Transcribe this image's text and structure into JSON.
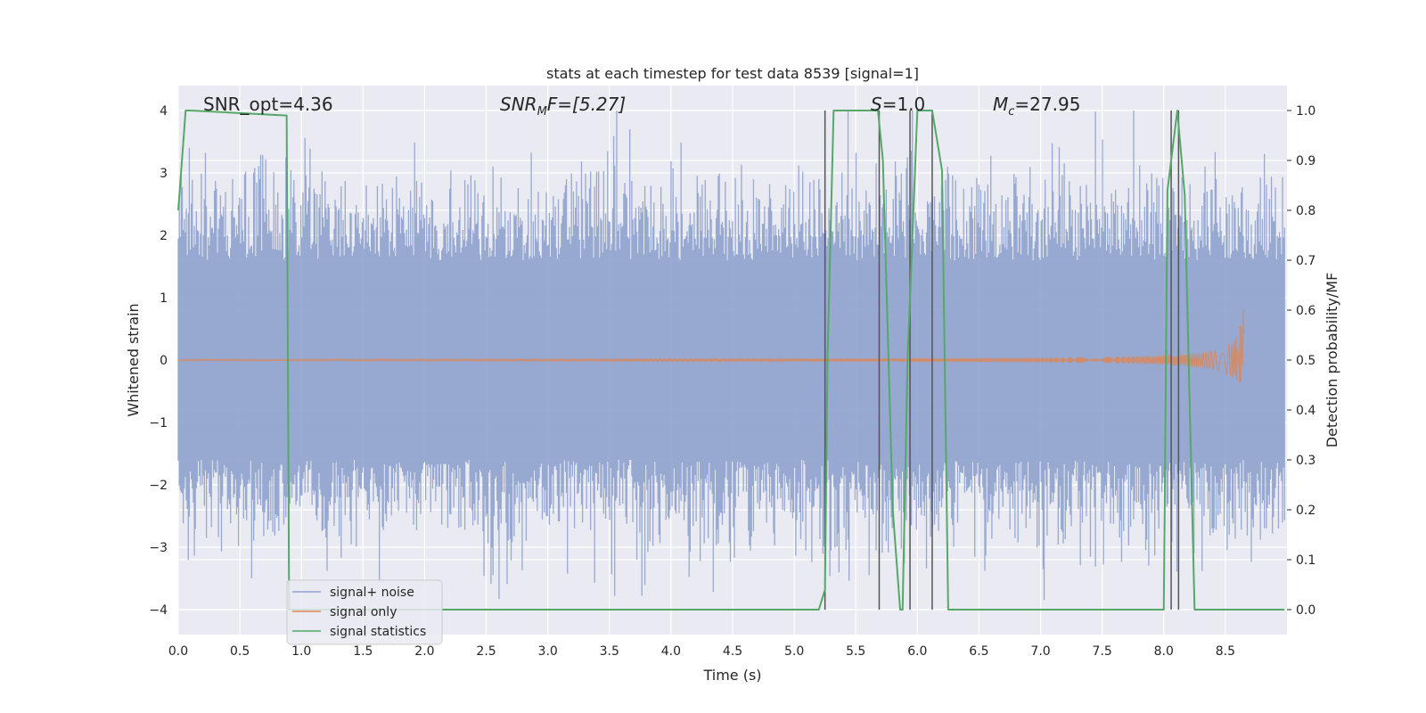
{
  "chart_data": {
    "type": "line",
    "title": "stats at each timestep for test data 8539 [signal=1]",
    "xlabel": "Time (s)",
    "ylabel": "Whitened strain",
    "ylabel_right": "Detection probability/MF",
    "xlim": [
      0.0,
      9.0
    ],
    "ylim": [
      -4.4,
      4.4
    ],
    "ylim_right": [
      -0.05,
      1.05
    ],
    "xticks": [
      0.0,
      0.5,
      1.0,
      1.5,
      2.0,
      2.5,
      3.0,
      3.5,
      4.0,
      4.5,
      5.0,
      5.5,
      6.0,
      6.5,
      7.0,
      7.5,
      8.0,
      8.5
    ],
    "xtick_labels": [
      "0.0",
      "0.5",
      "1.0",
      "1.5",
      "2.0",
      "2.5",
      "3.0",
      "3.5",
      "4.0",
      "4.5",
      "5.0",
      "5.5",
      "6.0",
      "6.5",
      "7.0",
      "7.5",
      "8.0",
      "8.5"
    ],
    "yticks": [
      4,
      3,
      2,
      1,
      0,
      -1,
      -2,
      -3,
      -4
    ],
    "ytick_labels": [
      "4",
      "3",
      "2",
      "1",
      "0",
      "−1",
      "−2",
      "−3",
      "−4"
    ],
    "yticks_right": [
      1.0,
      0.9,
      0.8,
      0.7,
      0.6,
      0.5,
      0.4,
      0.3,
      0.2,
      0.1,
      0.0
    ],
    "ytick_labels_right": [
      "1.0",
      "0.9",
      "0.8",
      "0.7",
      "0.6",
      "0.5",
      "0.4",
      "0.3",
      "0.2",
      "0.1",
      "0.0"
    ],
    "grid": true,
    "legend_placement": "lower-left",
    "annotations": {
      "snr_opt": "SNR_opt=4.36",
      "snr_mf_main": "SNR",
      "snr_mf_sub": "M",
      "snr_mf_rest": "F=[5.27]",
      "s_main": "S",
      "s_rest": "=1.0",
      "mc_main": "M",
      "mc_sub": "c",
      "mc_rest": "=27.95"
    },
    "series": [
      {
        "name": "signal+ noise",
        "color": "#8ea2cc",
        "x_range": [
          0.0,
          8.98
        ],
        "envelope": {
          "typical_abs": 1.6,
          "max": 4.0,
          "min": -3.85
        }
      },
      {
        "name": "signal only",
        "color": "#dd8452",
        "x_range": [
          0.0,
          8.65
        ],
        "peak_amplitude": 1.1,
        "merger_time": 8.65
      },
      {
        "name": "signal statistics",
        "color": "#55a868",
        "axis": "right",
        "x": [
          0.0,
          0.06,
          0.1,
          0.88,
          0.9,
          0.94,
          5.2,
          5.25,
          5.27,
          5.32,
          5.68,
          5.72,
          5.8,
          5.86,
          5.88,
          5.92,
          6.0,
          6.06,
          6.12,
          6.2,
          6.25,
          6.3,
          8.0,
          8.03,
          8.11,
          8.17,
          8.25,
          8.98
        ],
        "values": [
          0.8,
          1.0,
          1.0,
          0.99,
          0.0,
          0.0,
          0.0,
          0.04,
          0.5,
          1.0,
          1.0,
          0.9,
          0.2,
          0.0,
          0.0,
          0.5,
          1.0,
          1.0,
          1.0,
          0.88,
          0.0,
          0.0,
          0.0,
          0.84,
          1.0,
          0.83,
          0.0,
          0.0
        ]
      }
    ],
    "vlines": [
      5.25,
      5.69,
      5.94,
      6.12,
      8.06,
      8.12
    ],
    "vline_color": "#555555"
  }
}
